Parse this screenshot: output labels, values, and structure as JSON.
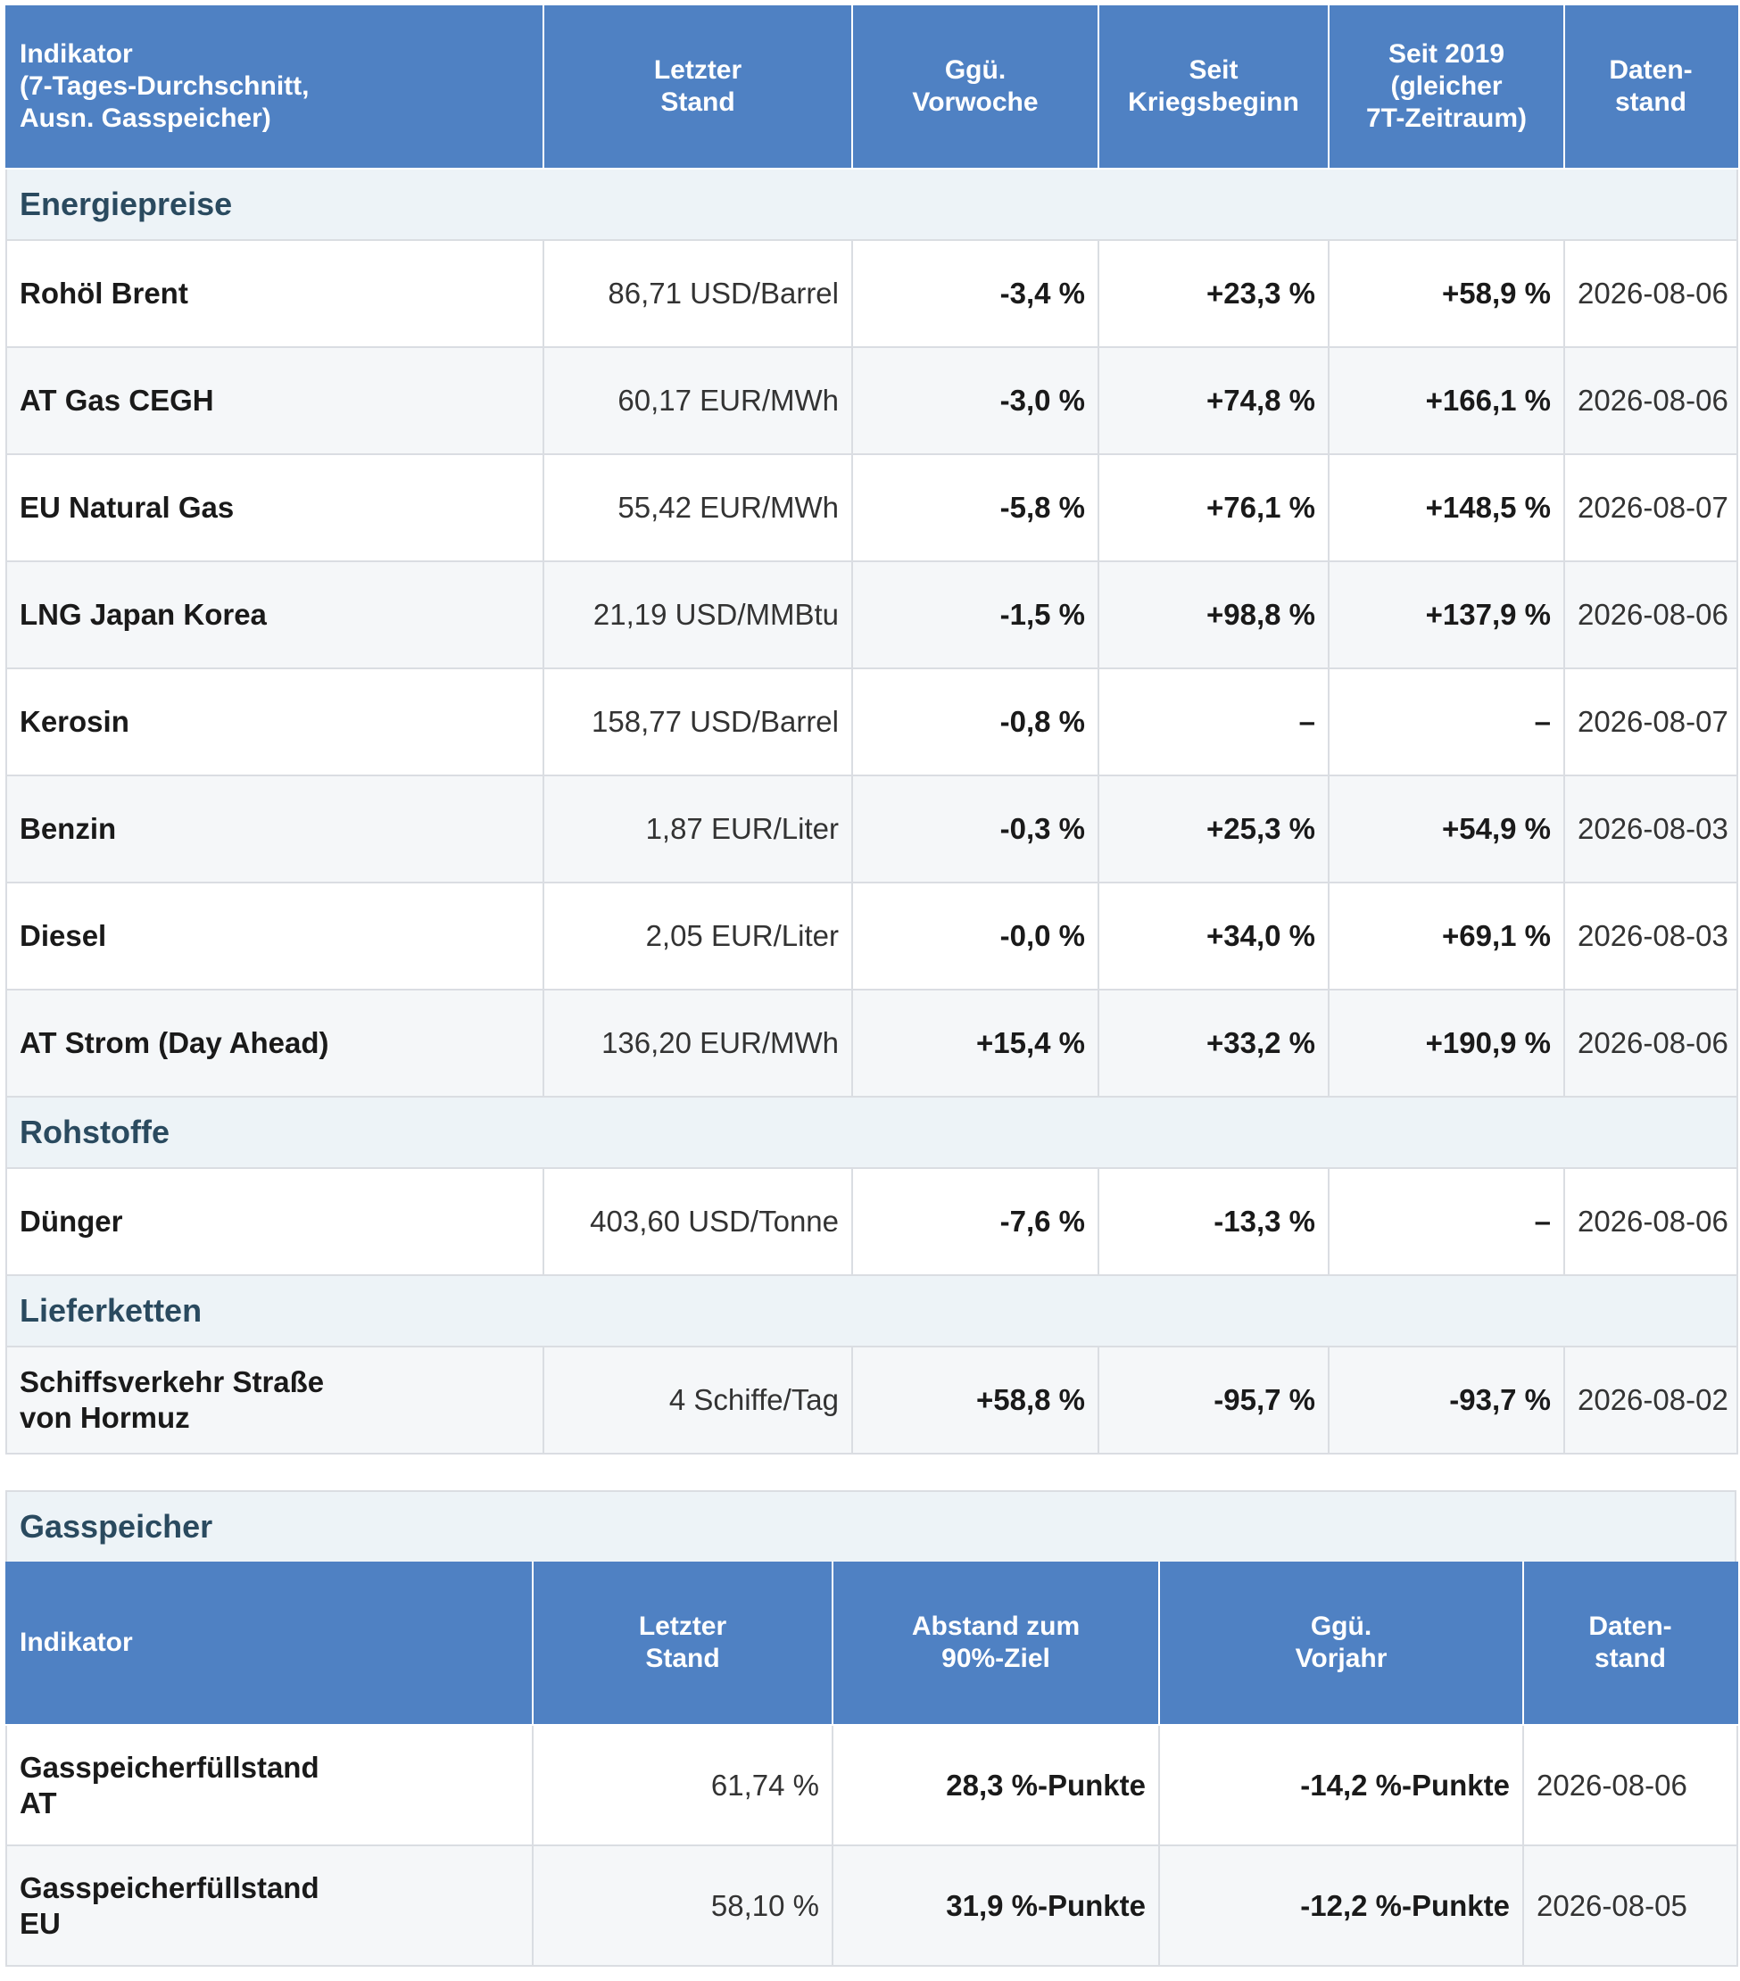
{
  "main_table": {
    "headers": {
      "indicator": "Indikator (7-Tages-Durchschnitt, Ausn. Gasspeicher)",
      "indicator_lines": [
        "Indikator",
        "(7-Tages-Durchschnitt,",
        "Ausn. Gasspeicher)"
      ],
      "last_value_lines": [
        "Letzter",
        "Stand"
      ],
      "vs_prev_week_lines": [
        "Ggü.",
        "Vorwoche"
      ],
      "since_war_lines": [
        "Seit",
        "Kriegsbeginn"
      ],
      "since_2019_lines": [
        "Seit 2019",
        "(gleicher",
        "7T-Zeitraum)"
      ],
      "data_date_lines": [
        "Daten-",
        "stand"
      ]
    },
    "sections": [
      {
        "title": "Energiepreise",
        "rows": [
          {
            "name": "Rohöl Brent",
            "value": "86,71 USD/Barrel",
            "week": "-3,4 %",
            "war": "+23,3 %",
            "since2019": "+58,9 %",
            "date": "2026-08-06"
          },
          {
            "name": "AT Gas CEGH",
            "value": "60,17 EUR/MWh",
            "week": "-3,0 %",
            "war": "+74,8 %",
            "since2019": "+166,1 %",
            "date": "2026-08-06"
          },
          {
            "name": "EU Natural Gas",
            "value": "55,42 EUR/MWh",
            "week": "-5,8 %",
            "war": "+76,1 %",
            "since2019": "+148,5 %",
            "date": "2026-08-07"
          },
          {
            "name": "LNG Japan Korea",
            "value": "21,19 USD/MMBtu",
            "week": "-1,5 %",
            "war": "+98,8 %",
            "since2019": "+137,9 %",
            "date": "2026-08-06"
          },
          {
            "name": "Kerosin",
            "value": "158,77 USD/Barrel",
            "week": "-0,8 %",
            "war": "–",
            "since2019": "–",
            "date": "2026-08-07"
          },
          {
            "name": "Benzin",
            "value": "1,87 EUR/Liter",
            "week": "-0,3 %",
            "war": "+25,3 %",
            "since2019": "+54,9 %",
            "date": "2026-08-03"
          },
          {
            "name": "Diesel",
            "value": "2,05 EUR/Liter",
            "week": "-0,0 %",
            "war": "+34,0 %",
            "since2019": "+69,1 %",
            "date": "2026-08-03"
          },
          {
            "name": "AT Strom (Day Ahead)",
            "value": "136,20 EUR/MWh",
            "week": "+15,4 %",
            "war": "+33,2 %",
            "since2019": "+190,9 %",
            "date": "2026-08-06"
          }
        ]
      },
      {
        "title": "Rohstoffe",
        "rows": [
          {
            "name": "Dünger",
            "value": "403,60 USD/Tonne",
            "week": "-7,6 %",
            "war": "-13,3 %",
            "since2019": "–",
            "date": "2026-08-06"
          }
        ]
      },
      {
        "title": "Lieferketten",
        "rows": [
          {
            "name_lines": [
              "Schiffsverkehr Straße",
              "von Hormuz"
            ],
            "value": "4 Schiffe/Tag",
            "week": "+58,8 %",
            "war": "-95,7 %",
            "since2019": "-93,7 %",
            "date": "2026-08-02"
          }
        ]
      }
    ]
  },
  "gas_storage": {
    "title": "Gasspeicher",
    "headers": {
      "indicator": "Indikator",
      "last_value_lines": [
        "Letzter",
        "Stand"
      ],
      "gap_lines": [
        "Abstand zum",
        "90%-Ziel"
      ],
      "vs_prev_year_lines": [
        "Ggü.",
        "Vorjahr"
      ],
      "data_date_lines": [
        "Daten-",
        "stand"
      ]
    },
    "rows": [
      {
        "name_lines": [
          "Gasspeicherfüllstand",
          "AT"
        ],
        "value": "61,74 %",
        "gap": "28,3 %-Punkte",
        "year": "-14,2 %-Punkte",
        "date": "2026-08-06"
      },
      {
        "name_lines": [
          "Gasspeicherfüllstand",
          "EU"
        ],
        "value": "58,10 %",
        "gap": "31,9 %-Punkte",
        "year": "-12,2 %-Punkte",
        "date": "2026-08-05"
      }
    ]
  }
}
